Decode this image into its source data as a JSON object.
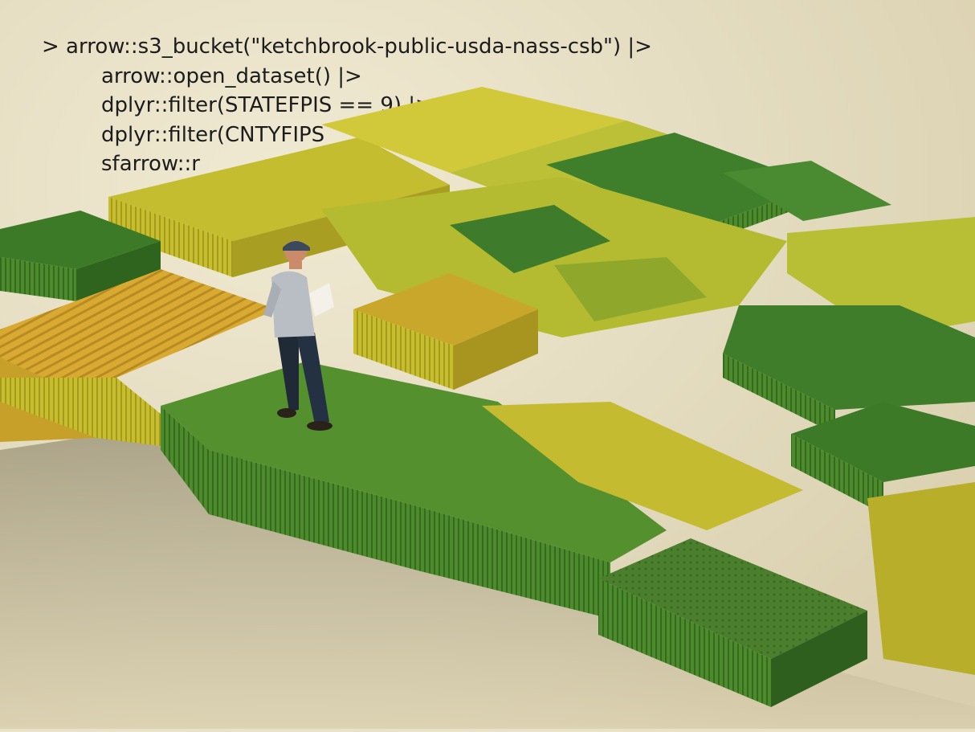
{
  "code": {
    "lines": [
      "> arrow::s3_bucket(\"ketchbrook-public-usda-nass-csb\") |>",
      "arrow::open_dataset() |>",
      "dplyr::filter(STATEFPIS == 9) |>",
      "dplyr::filter(CNTYFIPS",
      "sfarrow::r"
    ]
  },
  "colors": {
    "background": "#e9e2c8",
    "crop_yellow": "#c9c12e",
    "crop_green": "#4f8a2a",
    "crop_dark_green": "#2f6b23",
    "shirt": "#b9bec4",
    "jeans": "#1f2a36"
  }
}
